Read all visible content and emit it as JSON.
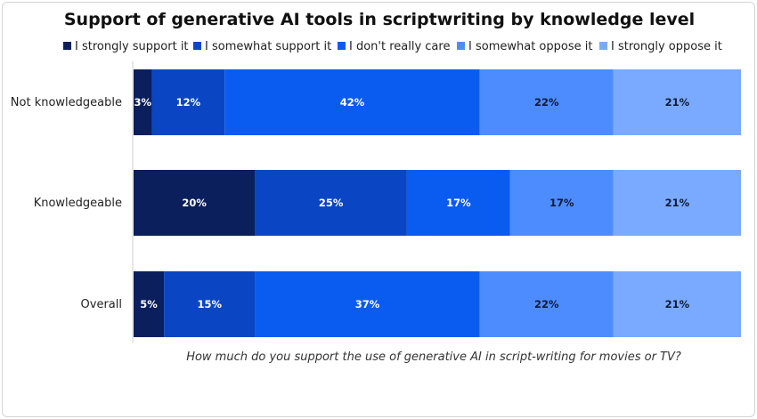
{
  "chart_data": {
    "type": "bar",
    "orientation": "horizontal",
    "stacked": true,
    "normalized": true,
    "title": "Support of generative AI tools in scriptwriting by knowledge level",
    "xlabel": "How much do you support the use of generative AI in script-writing for movies or TV?",
    "ylabel": "",
    "categories": [
      "Not knowledgeable",
      "Knowledgeable",
      "Overall"
    ],
    "series": [
      {
        "name": "I strongly support it",
        "color": "#0a1f5c",
        "values": [
          3,
          20,
          5
        ],
        "labels": [
          "3%",
          "20%",
          "5%"
        ]
      },
      {
        "name": "I somewhat support it",
        "color": "#0a46c4",
        "values": [
          12,
          25,
          15
        ],
        "labels": [
          "12%",
          "25%",
          "15%"
        ]
      },
      {
        "name": "I don't really care",
        "color": "#0a5cf0",
        "values": [
          42,
          17,
          37
        ],
        "labels": [
          "42%",
          "17%",
          "37%"
        ]
      },
      {
        "name": "I somewhat oppose it",
        "color": "#4d8cff",
        "values": [
          22,
          17,
          22
        ],
        "labels": [
          "22%",
          "17%",
          "22%"
        ]
      },
      {
        "name": "I strongly oppose it",
        "color": "#7aaaff",
        "values": [
          21,
          21,
          21
        ],
        "labels": [
          "21%",
          "21%",
          "21%"
        ]
      }
    ],
    "legend_position": "top",
    "grid": false
  }
}
